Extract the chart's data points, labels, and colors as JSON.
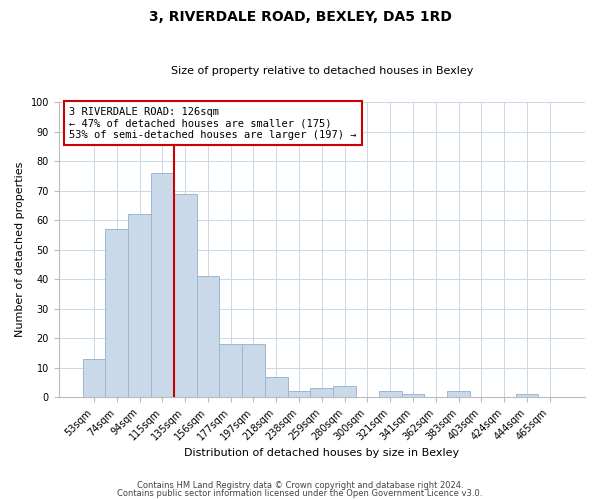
{
  "title": "3, RIVERDALE ROAD, BEXLEY, DA5 1RD",
  "subtitle": "Size of property relative to detached houses in Bexley",
  "xlabel": "Distribution of detached houses by size in Bexley",
  "ylabel": "Number of detached properties",
  "bar_labels": [
    "53sqm",
    "74sqm",
    "94sqm",
    "115sqm",
    "135sqm",
    "156sqm",
    "177sqm",
    "197sqm",
    "218sqm",
    "238sqm",
    "259sqm",
    "280sqm",
    "300sqm",
    "321sqm",
    "341sqm",
    "362sqm",
    "383sqm",
    "403sqm",
    "424sqm",
    "444sqm",
    "465sqm"
  ],
  "bar_values": [
    13,
    57,
    62,
    76,
    69,
    41,
    18,
    18,
    7,
    2,
    3,
    4,
    0,
    2,
    1,
    0,
    2,
    0,
    0,
    1,
    0
  ],
  "bar_color": "#c9d9ea",
  "bar_edge_color": "#9ab8d0",
  "ylim": [
    0,
    100
  ],
  "yticks": [
    0,
    10,
    20,
    30,
    40,
    50,
    60,
    70,
    80,
    90,
    100
  ],
  "vline_color": "#cc0000",
  "annotation_title": "3 RIVERDALE ROAD: 126sqm",
  "annotation_line1": "← 47% of detached houses are smaller (175)",
  "annotation_line2": "53% of semi-detached houses are larger (197) →",
  "annotation_box_color": "#ffffff",
  "annotation_box_edge": "#cc0000",
  "footnote1": "Contains HM Land Registry data © Crown copyright and database right 2024.",
  "footnote2": "Contains public sector information licensed under the Open Government Licence v3.0.",
  "background_color": "#ffffff",
  "grid_color": "#c8d8e8",
  "title_fontsize": 10,
  "subtitle_fontsize": 8,
  "axis_label_fontsize": 8,
  "tick_fontsize": 7,
  "annot_fontsize": 7.5,
  "footnote_fontsize": 6
}
